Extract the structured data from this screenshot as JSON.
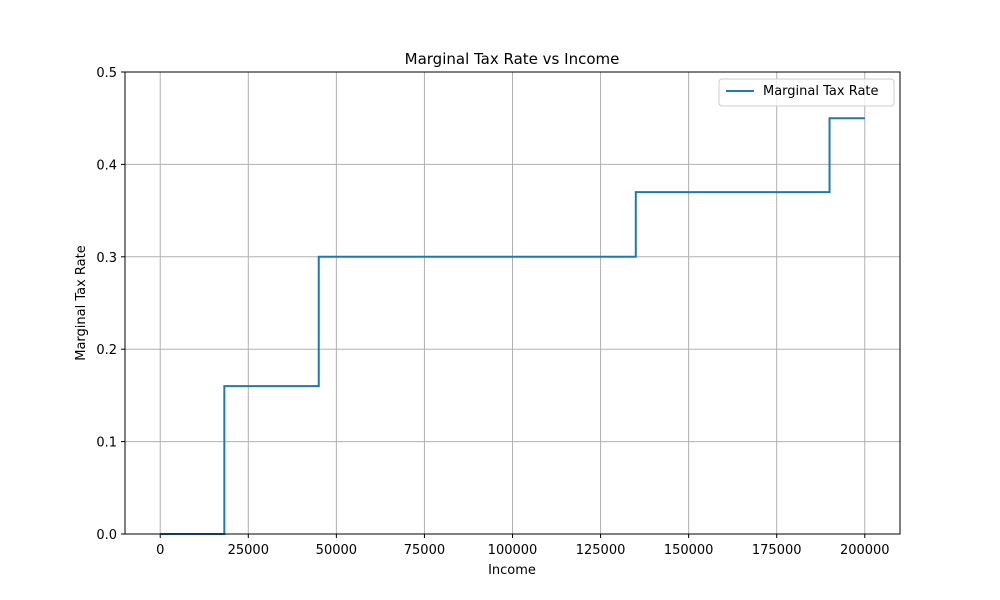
{
  "chart_data": {
    "type": "line",
    "step": "post",
    "title": "Marginal Tax Rate vs Income",
    "xlabel": "Income",
    "ylabel": "Marginal Tax Rate",
    "xlim": [
      -10000,
      210000
    ],
    "ylim": [
      0,
      0.5
    ],
    "x_ticks": [
      0,
      25000,
      50000,
      75000,
      100000,
      125000,
      150000,
      175000,
      200000
    ],
    "y_ticks": [
      0.0,
      0.1,
      0.2,
      0.3,
      0.4,
      0.5
    ],
    "x_tick_labels": [
      "0",
      "25000",
      "50000",
      "75000",
      "100000",
      "125000",
      "150000",
      "175000",
      "200000"
    ],
    "y_tick_labels": [
      "0.0",
      "0.1",
      "0.2",
      "0.3",
      "0.4",
      "0.5"
    ],
    "grid": true,
    "legend_position": "top-right",
    "series": [
      {
        "name": "Marginal Tax Rate",
        "color": "#1f77b4",
        "x": [
          0,
          18200,
          45000,
          135000,
          190000,
          200000
        ],
        "y": [
          0.0,
          0.16,
          0.3,
          0.37,
          0.45,
          0.45
        ]
      }
    ]
  }
}
